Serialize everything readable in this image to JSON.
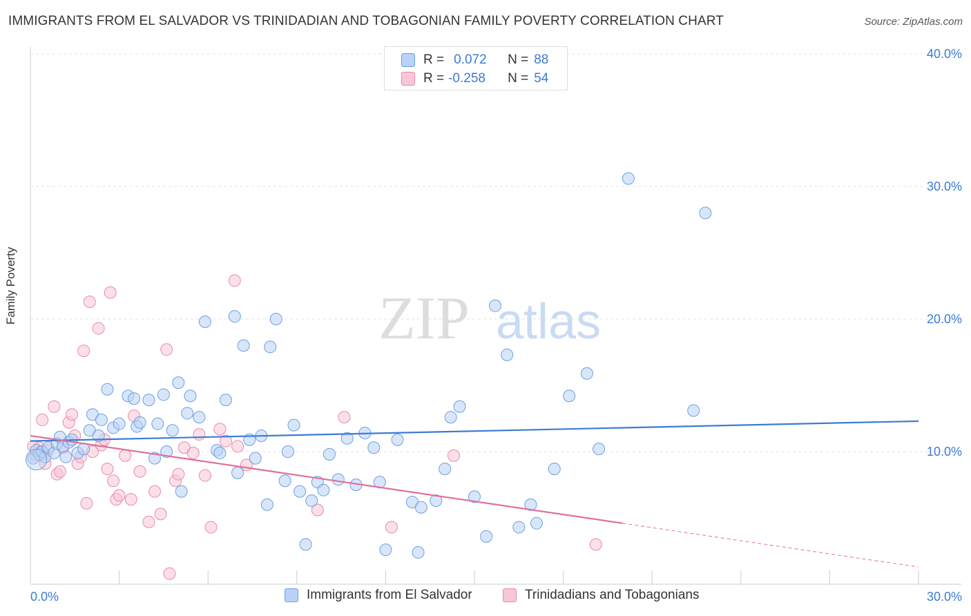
{
  "title": "IMMIGRANTS FROM EL SALVADOR VS TRINIDADIAN AND TOBAGONIAN FAMILY POVERTY CORRELATION CHART",
  "source": "Source: ZipAtlas.com",
  "watermark": {
    "zip": "ZIP",
    "atlas": "atlas"
  },
  "legend": {
    "r_label": "R =",
    "n_label": "N =",
    "rows": [
      {
        "r": "0.072",
        "n": "88",
        "fill": "#b9d2f5",
        "stroke": "#6a9fe0"
      },
      {
        "r": "-0.258",
        "n": "54",
        "fill": "#f8c6d6",
        "stroke": "#e88aa8"
      }
    ]
  },
  "bottom_legend": [
    "Immigrants from El Salvador",
    "Trinidadians and Tobagonians"
  ],
  "chart_data": {
    "type": "scatter",
    "title": "IMMIGRANTS FROM EL SALVADOR VS TRINIDADIAN AND TOBAGONIAN FAMILY POVERTY CORRELATION CHART",
    "xlabel": "",
    "ylabel": "Family Poverty",
    "xlim": [
      0,
      30
    ],
    "ylim": [
      0,
      40
    ],
    "x_tick_labels": [
      "0.0%",
      "30.0%"
    ],
    "y_ticks": [
      10,
      20,
      30,
      40
    ],
    "y_tick_labels": [
      "10.0%",
      "20.0%",
      "30.0%",
      "40.0%"
    ],
    "grid": true,
    "colors": {
      "blue": "#3b7bd4",
      "pink": "#e07099",
      "blue_fill": "#b9d2f5",
      "pink_fill": "#f8c6d6",
      "axis_text": "#3b7bd4"
    },
    "series": [
      {
        "name": "Immigrants from El Salvador",
        "trend": {
          "x0": 0,
          "y0": 10.8,
          "x1": 30,
          "y1": 12.3,
          "style": "solid"
        },
        "points": [
          [
            0.1,
            9.5
          ],
          [
            0.2,
            10.1
          ],
          [
            0.3,
            9.8
          ],
          [
            0.4,
            10.0
          ],
          [
            0.5,
            9.6
          ],
          [
            0.6,
            10.3
          ],
          [
            0.8,
            9.9
          ],
          [
            0.9,
            10.6
          ],
          [
            1.0,
            11.1
          ],
          [
            1.1,
            10.4
          ],
          [
            1.2,
            9.6
          ],
          [
            1.3,
            10.7
          ],
          [
            1.4,
            10.9
          ],
          [
            1.6,
            9.9
          ],
          [
            1.8,
            10.2
          ],
          [
            2.0,
            11.6
          ],
          [
            2.1,
            12.8
          ],
          [
            2.3,
            11.2
          ],
          [
            2.4,
            12.4
          ],
          [
            2.6,
            14.7
          ],
          [
            2.8,
            11.8
          ],
          [
            3.0,
            12.1
          ],
          [
            3.3,
            14.2
          ],
          [
            3.5,
            14.0
          ],
          [
            3.6,
            11.9
          ],
          [
            3.7,
            12.2
          ],
          [
            4.0,
            13.9
          ],
          [
            4.2,
            9.5
          ],
          [
            4.3,
            12.1
          ],
          [
            4.5,
            14.3
          ],
          [
            4.6,
            10.0
          ],
          [
            4.8,
            11.6
          ],
          [
            5.0,
            15.2
          ],
          [
            5.1,
            7.0
          ],
          [
            5.3,
            12.9
          ],
          [
            5.4,
            14.2
          ],
          [
            5.7,
            12.6
          ],
          [
            5.9,
            19.8
          ],
          [
            6.3,
            10.1
          ],
          [
            6.4,
            9.9
          ],
          [
            6.6,
            13.9
          ],
          [
            6.9,
            20.2
          ],
          [
            7.0,
            8.4
          ],
          [
            7.2,
            18.0
          ],
          [
            7.4,
            10.9
          ],
          [
            7.6,
            9.5
          ],
          [
            7.8,
            11.2
          ],
          [
            8.0,
            6.0
          ],
          [
            8.1,
            17.9
          ],
          [
            8.3,
            20.0
          ],
          [
            8.6,
            7.8
          ],
          [
            8.7,
            10.0
          ],
          [
            8.9,
            12.0
          ],
          [
            9.1,
            7.0
          ],
          [
            9.3,
            3.0
          ],
          [
            9.5,
            6.3
          ],
          [
            9.7,
            7.7
          ],
          [
            9.9,
            7.1
          ],
          [
            10.1,
            9.8
          ],
          [
            10.4,
            7.9
          ],
          [
            10.7,
            11.0
          ],
          [
            11.0,
            7.5
          ],
          [
            11.3,
            11.4
          ],
          [
            11.6,
            10.3
          ],
          [
            11.8,
            7.7
          ],
          [
            12.0,
            2.6
          ],
          [
            12.4,
            10.9
          ],
          [
            12.9,
            6.2
          ],
          [
            13.2,
            5.8
          ],
          [
            13.7,
            6.3
          ],
          [
            14.0,
            8.7
          ],
          [
            14.2,
            12.6
          ],
          [
            14.5,
            13.4
          ],
          [
            15.0,
            6.6
          ],
          [
            15.4,
            3.6
          ],
          [
            15.7,
            21.0
          ],
          [
            16.1,
            17.3
          ],
          [
            16.5,
            4.3
          ],
          [
            16.9,
            6.0
          ],
          [
            17.1,
            4.6
          ],
          [
            17.7,
            8.7
          ],
          [
            18.2,
            14.2
          ],
          [
            18.8,
            15.9
          ],
          [
            19.2,
            10.2
          ],
          [
            20.2,
            30.6
          ],
          [
            22.8,
            28.0
          ],
          [
            22.4,
            13.1
          ],
          [
            13.1,
            2.4
          ]
        ]
      },
      {
        "name": "Trinidadians and Tobagonians",
        "trend": {
          "x0": 0,
          "y0": 11.2,
          "x1": 20,
          "y1": 4.6,
          "style": "solid",
          "dash_to_x": 30,
          "dash_to_y": 1.3
        },
        "points": [
          [
            0.1,
            10.4
          ],
          [
            0.2,
            9.7
          ],
          [
            0.3,
            10.3
          ],
          [
            0.4,
            12.4
          ],
          [
            0.5,
            9.1
          ],
          [
            0.6,
            10.1
          ],
          [
            0.8,
            13.4
          ],
          [
            0.9,
            8.3
          ],
          [
            1.0,
            8.5
          ],
          [
            1.1,
            10.3
          ],
          [
            1.3,
            12.2
          ],
          [
            1.4,
            12.8
          ],
          [
            1.5,
            11.2
          ],
          [
            1.6,
            9.1
          ],
          [
            1.7,
            9.6
          ],
          [
            1.8,
            17.6
          ],
          [
            1.9,
            6.1
          ],
          [
            2.0,
            21.3
          ],
          [
            2.1,
            10.0
          ],
          [
            2.3,
            19.3
          ],
          [
            2.4,
            10.5
          ],
          [
            2.5,
            10.9
          ],
          [
            2.6,
            8.7
          ],
          [
            2.7,
            22.0
          ],
          [
            2.8,
            7.8
          ],
          [
            2.9,
            6.4
          ],
          [
            3.0,
            6.7
          ],
          [
            3.2,
            9.7
          ],
          [
            3.4,
            6.4
          ],
          [
            3.5,
            12.7
          ],
          [
            3.7,
            8.5
          ],
          [
            4.0,
            4.7
          ],
          [
            4.2,
            7.0
          ],
          [
            4.4,
            5.3
          ],
          [
            4.6,
            17.7
          ],
          [
            4.7,
            0.8
          ],
          [
            4.9,
            7.8
          ],
          [
            5.0,
            8.3
          ],
          [
            5.2,
            10.3
          ],
          [
            5.5,
            9.9
          ],
          [
            5.7,
            11.3
          ],
          [
            5.9,
            8.2
          ],
          [
            6.1,
            4.3
          ],
          [
            6.4,
            11.7
          ],
          [
            6.6,
            10.8
          ],
          [
            6.9,
            22.9
          ],
          [
            7.0,
            10.4
          ],
          [
            7.3,
            9.0
          ],
          [
            9.7,
            5.6
          ],
          [
            10.6,
            12.6
          ],
          [
            12.2,
            4.3
          ],
          [
            14.3,
            9.7
          ],
          [
            19.1,
            3.0
          ],
          [
            0.35,
            10.0
          ]
        ]
      }
    ]
  }
}
